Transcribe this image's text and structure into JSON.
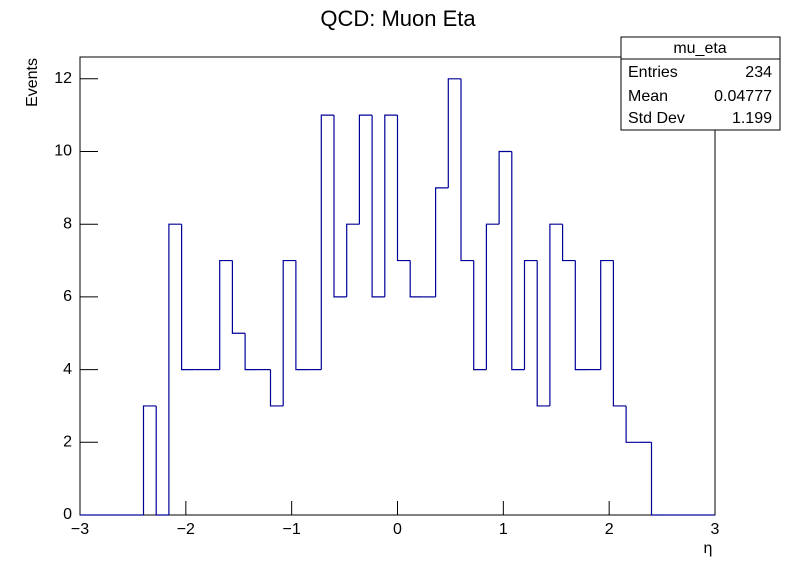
{
  "chart_data": {
    "type": "histogram",
    "title": "QCD:  Muon Eta",
    "x_label": "η",
    "y_label": "Events",
    "color": "#000099",
    "bins": [
      -3,
      -2.88,
      -2.76,
      -2.64,
      -2.52,
      -2.4,
      -2.28,
      -2.16,
      -2.04,
      -1.92,
      -1.8,
      -1.68,
      -1.56,
      -1.44,
      -1.32,
      -1.2,
      -1.08,
      -0.96,
      -0.84,
      -0.72,
      -0.6,
      -0.48,
      -0.36,
      -0.24,
      -0.12,
      0,
      0.12,
      0.24,
      0.36,
      0.48,
      0.6,
      0.72,
      0.84,
      0.96,
      1.08,
      1.2,
      1.32,
      1.44,
      1.56,
      1.68,
      1.8,
      1.92,
      2.04,
      2.16,
      2.28,
      2.4,
      2.52,
      2.64,
      2.76,
      2.88,
      3
    ],
    "values": [
      0,
      0,
      0,
      0,
      0,
      3,
      0,
      8,
      4,
      4,
      4,
      7,
      5,
      4,
      4,
      3,
      7,
      4,
      4,
      11,
      6,
      8,
      11,
      6,
      11,
      7,
      6,
      6,
      9,
      12,
      7,
      4,
      8,
      10,
      4,
      7,
      3,
      8,
      7,
      4,
      4,
      7,
      3,
      2,
      2,
      0,
      0,
      0,
      0,
      0
    ],
    "xlim": [
      -3,
      3
    ],
    "ylim": [
      0,
      12.6
    ],
    "xticks": [
      {
        "value": -3,
        "label": "−3"
      },
      {
        "value": -2,
        "label": "−2"
      },
      {
        "value": -1,
        "label": "−1"
      },
      0,
      1,
      2,
      3
    ],
    "yticks": [
      0,
      2,
      4,
      6,
      8,
      10,
      12
    ],
    "stats": {
      "title": "mu_eta",
      "rows": [
        [
          "Entries",
          "234"
        ],
        [
          "Mean",
          "0.04777"
        ],
        [
          "Std Dev",
          "1.199"
        ]
      ]
    }
  }
}
